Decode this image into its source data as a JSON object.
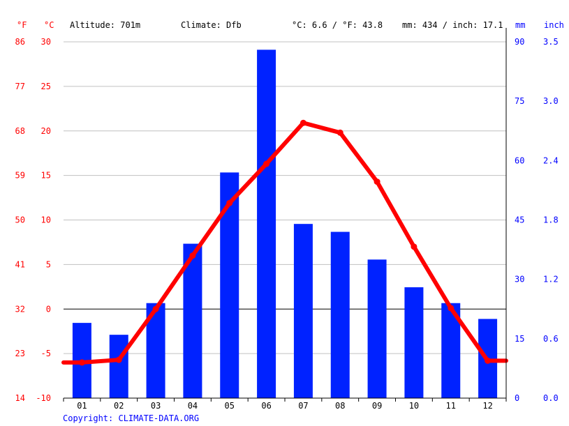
{
  "header": {
    "unit_f": "°F",
    "unit_c": "°C",
    "altitude": "Altitude: 701m",
    "climate": "Climate: Dfb",
    "temp_avg": "°C: 6.6 / °F: 43.8",
    "precip_total": "mm: 434 / inch: 17.1",
    "unit_mm": "mm",
    "unit_inch": "inch"
  },
  "copyright": "Copyright: CLIMATE-DATA.ORG",
  "colors": {
    "temperature": "#ff0000",
    "precipitation": "#0022ff",
    "grid": "#c0c0c0",
    "zero_line": "#000000"
  },
  "chart_data": {
    "type": "bar+line",
    "categories": [
      "01",
      "02",
      "03",
      "04",
      "05",
      "06",
      "07",
      "08",
      "09",
      "10",
      "11",
      "12"
    ],
    "series": [
      {
        "name": "Precipitation (mm)",
        "type": "bar",
        "axis": "right",
        "values": [
          19,
          16,
          24,
          39,
          57,
          88,
          44,
          42,
          35,
          28,
          24,
          20
        ]
      },
      {
        "name": "Temperature (°C)",
        "type": "line",
        "axis": "left",
        "values": [
          -6.0,
          -5.7,
          0.0,
          6.0,
          11.9,
          16.3,
          20.9,
          19.8,
          14.3,
          7.0,
          0.1,
          -5.8
        ]
      }
    ],
    "y_left": {
      "label": "°C",
      "range": [
        -10,
        30
      ],
      "ticks": [
        -10,
        -5,
        0,
        5,
        10,
        15,
        20,
        25,
        30
      ],
      "tick_labels_f": [
        "14",
        "23",
        "32",
        "41",
        "50",
        "59",
        "68",
        "77",
        "86"
      ]
    },
    "y_right": {
      "label": "mm",
      "range": [
        0,
        90
      ],
      "ticks": [
        0,
        15,
        30,
        45,
        60,
        75,
        90
      ],
      "tick_labels_inch": [
        "0.0",
        "0.6",
        "1.2",
        "1.8",
        "2.4",
        "3.0",
        "3.5"
      ]
    },
    "grid": true,
    "legend": "none"
  }
}
